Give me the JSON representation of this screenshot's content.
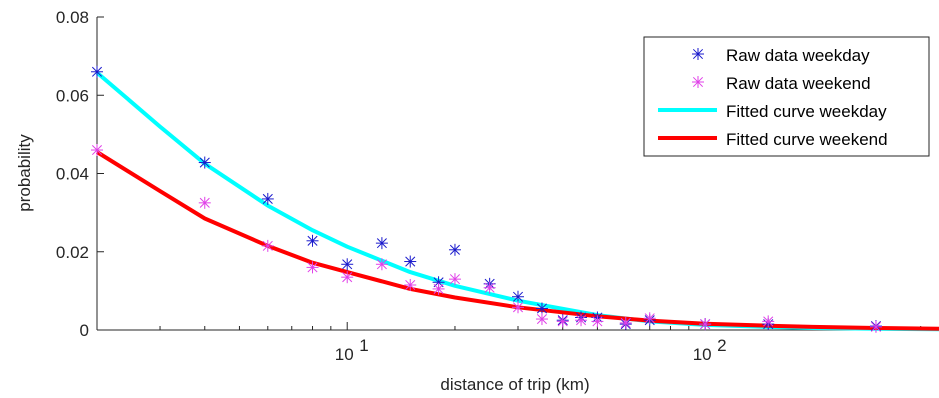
{
  "chart_data": {
    "type": "line",
    "xscale": "log",
    "xlabel": "distance of trip (km)",
    "ylabel": "probability",
    "xlim": [
      2,
      450
    ],
    "ylim": [
      0,
      0.08
    ],
    "grid": false,
    "legend_position": "top-right",
    "x_ticks": [
      {
        "value": 10,
        "base": "10",
        "exp": "1"
      },
      {
        "value": 100,
        "base": "10",
        "exp": "2"
      }
    ],
    "y_ticks": [
      {
        "value": 0,
        "label": "0"
      },
      {
        "value": 0.02,
        "label": "0.02"
      },
      {
        "value": 0.04,
        "label": "0.04"
      },
      {
        "value": 0.06,
        "label": "0.06"
      },
      {
        "value": 0.08,
        "label": "0.08"
      }
    ],
    "series": [
      {
        "name": "Raw data weekday",
        "kind": "scatter",
        "marker": "asterisk",
        "color": "#1a1acc",
        "points": [
          [
            2,
            0.066
          ],
          [
            4,
            0.0428
          ],
          [
            6,
            0.0335
          ],
          [
            8,
            0.0228
          ],
          [
            10,
            0.0168
          ],
          [
            12.5,
            0.0222
          ],
          [
            15,
            0.0175
          ],
          [
            18,
            0.0122
          ],
          [
            20,
            0.0205
          ],
          [
            25,
            0.0118
          ],
          [
            30,
            0.0085
          ],
          [
            35,
            0.0055
          ],
          [
            40,
            0.0025
          ],
          [
            45,
            0.0032
          ],
          [
            50,
            0.0032
          ],
          [
            60,
            0.0015
          ],
          [
            70,
            0.0025
          ],
          [
            100,
            0.0015
          ],
          [
            150,
            0.0015
          ],
          [
            300,
            0.001
          ]
        ]
      },
      {
        "name": "Raw data weekend",
        "kind": "scatter",
        "marker": "asterisk",
        "color": "#e040e8",
        "points": [
          [
            2,
            0.046
          ],
          [
            4,
            0.0325
          ],
          [
            6,
            0.0215
          ],
          [
            8,
            0.016
          ],
          [
            10,
            0.0135
          ],
          [
            12.5,
            0.0168
          ],
          [
            15,
            0.0115
          ],
          [
            18,
            0.0105
          ],
          [
            20,
            0.013
          ],
          [
            25,
            0.0108
          ],
          [
            30,
            0.0058
          ],
          [
            35,
            0.0028
          ],
          [
            40,
            0.0022
          ],
          [
            45,
            0.0025
          ],
          [
            50,
            0.0022
          ],
          [
            60,
            0.0018
          ],
          [
            70,
            0.003
          ],
          [
            100,
            0.0015
          ],
          [
            150,
            0.0022
          ],
          [
            300,
            0.0008
          ]
        ]
      },
      {
        "name": "Fitted curve weekday",
        "kind": "line",
        "color": "#00ffff",
        "points": [
          [
            2,
            0.0658
          ],
          [
            3,
            0.052
          ],
          [
            4,
            0.0425
          ],
          [
            6,
            0.0318
          ],
          [
            8,
            0.0255
          ],
          [
            10,
            0.0213
          ],
          [
            15,
            0.0148
          ],
          [
            20,
            0.0113
          ],
          [
            30,
            0.0075
          ],
          [
            50,
            0.0038
          ],
          [
            70,
            0.0022
          ],
          [
            100,
            0.0013
          ],
          [
            150,
            0.0008
          ],
          [
            200,
            0.0005
          ],
          [
            300,
            0.0003
          ],
          [
            450,
            0.0002
          ]
        ]
      },
      {
        "name": "Fitted curve weekend",
        "kind": "line",
        "color": "#ff0000",
        "points": [
          [
            2,
            0.0455
          ],
          [
            3,
            0.0355
          ],
          [
            4,
            0.0285
          ],
          [
            6,
            0.0215
          ],
          [
            8,
            0.0172
          ],
          [
            10,
            0.0148
          ],
          [
            15,
            0.0105
          ],
          [
            20,
            0.0083
          ],
          [
            30,
            0.0058
          ],
          [
            50,
            0.0035
          ],
          [
            70,
            0.0024
          ],
          [
            100,
            0.0016
          ],
          [
            150,
            0.0011
          ],
          [
            200,
            0.0008
          ],
          [
            300,
            0.0005
          ],
          [
            450,
            0.0003
          ]
        ]
      }
    ]
  }
}
